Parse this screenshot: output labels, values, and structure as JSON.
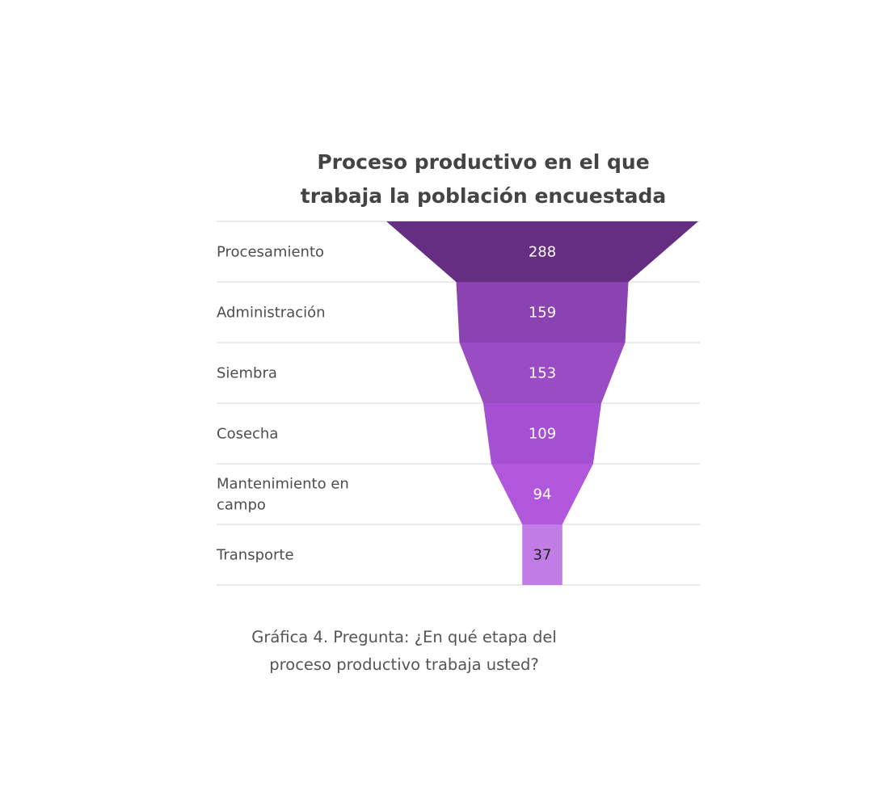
{
  "chart_data": {
    "type": "funnel",
    "title_lines": [
      "Proceso productivo en el que",
      "trabaja la población encuestada"
    ],
    "categories": [
      "Procesamiento",
      "Administración",
      "Siembra",
      "Cosecha",
      "Mantenimiento en campo",
      "Transporte"
    ],
    "category_label_lines": [
      [
        "Procesamiento"
      ],
      [
        "Administración"
      ],
      [
        "Siembra"
      ],
      [
        "Cosecha"
      ],
      [
        "Mantenimiento en",
        "campo"
      ],
      [
        "Transporte"
      ]
    ],
    "values": [
      288,
      159,
      153,
      109,
      94,
      37
    ],
    "colors": [
      "#652e83",
      "#8a43b0",
      "#9a4cc2",
      "#a550d2",
      "#b157dc",
      "#c17ce6"
    ],
    "value_label_colors": [
      "#ffffff",
      "#ffffff",
      "#ffffff",
      "#ffffff",
      "#ffffff",
      "#222222"
    ],
    "separator_color": "#d6d6d6",
    "caption_lines": [
      "Gráfica 4. Pregunta: ¿En qué etapa del",
      "proceso productivo trabaja usted?"
    ]
  }
}
